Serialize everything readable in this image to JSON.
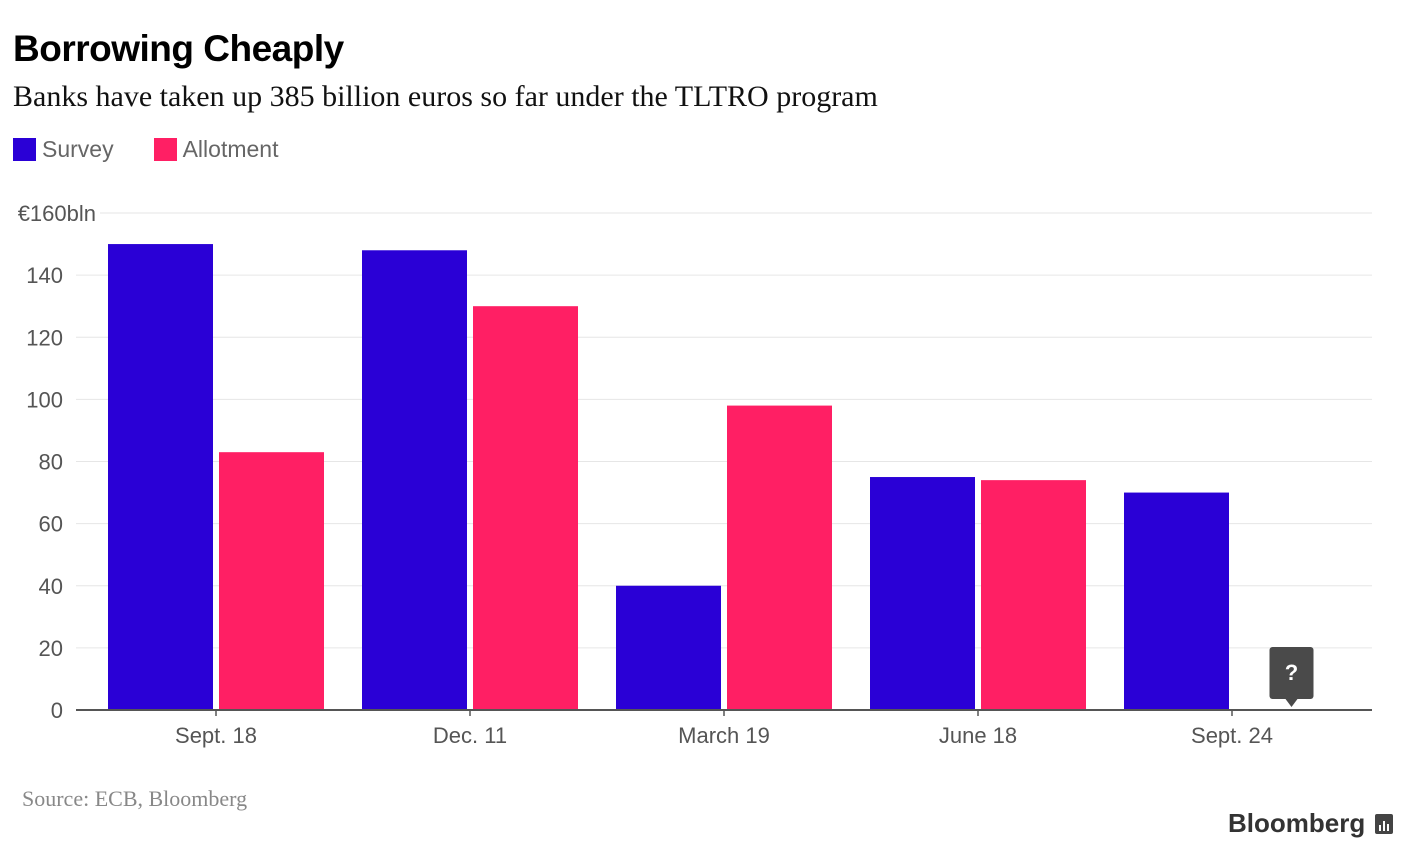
{
  "chart_data": {
    "type": "bar",
    "title": "Borrowing Cheaply",
    "subtitle": "Banks have taken up 385 billion euros so far under the TLTRO program",
    "xlabel": "",
    "ylabel": "",
    "ylim": [
      0,
      160
    ],
    "yticks": [
      0,
      20,
      40,
      60,
      80,
      100,
      120,
      140,
      160
    ],
    "ytick_labels": [
      "0",
      "20",
      "40",
      "60",
      "80",
      "100",
      "120",
      "140",
      "€160bln"
    ],
    "grid": true,
    "legend_position": "top-left",
    "categories": [
      "Sept. 18",
      "Dec. 11",
      "March 19",
      "June 18",
      "Sept. 24"
    ],
    "series": [
      {
        "name": "Survey",
        "color": "#2a00d6",
        "values": [
          150,
          148,
          40,
          75,
          70
        ]
      },
      {
        "name": "Allotment",
        "color": "#ff1f64",
        "values": [
          83,
          130,
          98,
          74,
          null
        ]
      }
    ],
    "annotations": [
      {
        "category": "Sept. 24",
        "series": "Allotment",
        "text": "?"
      }
    ]
  },
  "footer": {
    "source": "Source: ECB, Bloomberg",
    "brand": "Bloomberg"
  }
}
